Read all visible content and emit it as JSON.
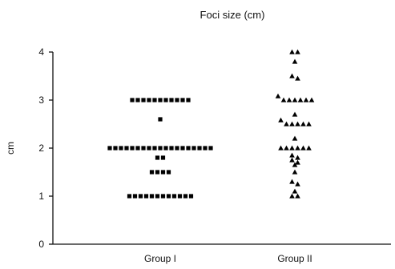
{
  "chart_data": {
    "type": "scatter",
    "title": "Foci size (cm)",
    "xlabel": "",
    "ylabel": "cm",
    "ylim": [
      0,
      4
    ],
    "y_ticks": [
      "0",
      "1",
      "2",
      "3",
      "4"
    ],
    "categories": [
      "Group I",
      "Group II"
    ],
    "grid": false,
    "legend": "none",
    "series": [
      {
        "category": "Group I",
        "marker": "square",
        "color": "#000000",
        "values": [
          3,
          3,
          3,
          3,
          3,
          3,
          3,
          3,
          3,
          3,
          3,
          2.6,
          2,
          2,
          2,
          2,
          2,
          2,
          2,
          2,
          2,
          2,
          2,
          2,
          2,
          2,
          2,
          2,
          2,
          2,
          2,
          1.8,
          1.8,
          1.5,
          1.5,
          1.5,
          1.5,
          1,
          1,
          1,
          1,
          1,
          1,
          1,
          1,
          1,
          1,
          1,
          1
        ]
      },
      {
        "category": "Group II",
        "marker": "triangle",
        "color": "#000000",
        "values": [
          4,
          4,
          3.8,
          3.5,
          3.45,
          3.08,
          3,
          3,
          3,
          3,
          3,
          3,
          2.7,
          2.58,
          2.5,
          2.5,
          2.5,
          2.5,
          2.5,
          2.2,
          2,
          2,
          2,
          2,
          2,
          2,
          1.85,
          1.8,
          1.75,
          1.7,
          1.65,
          1.5,
          1.3,
          1.25,
          1.1,
          1,
          1
        ]
      }
    ]
  }
}
